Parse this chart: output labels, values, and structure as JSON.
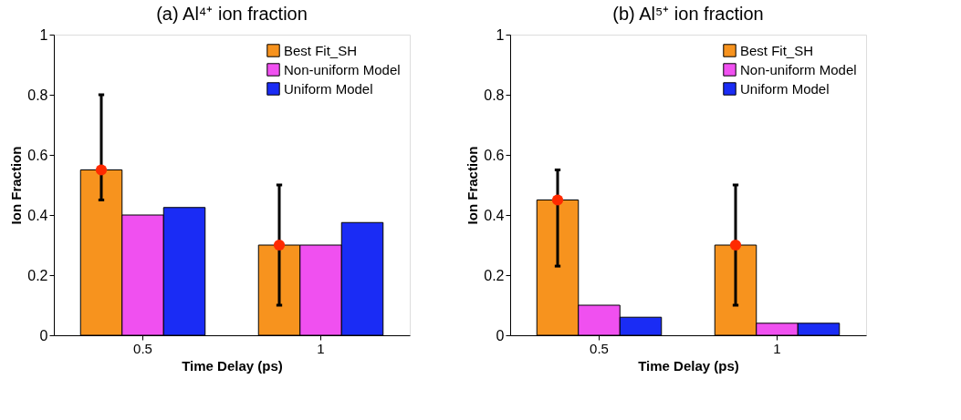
{
  "chart_data": [
    {
      "type": "bar",
      "title": "(a)  Al⁴⁺ ion fraction",
      "xlabel": "Time Delay (ps)",
      "ylabel": "Ion Fraction",
      "categories": [
        "0.5",
        "1"
      ],
      "ylim": [
        0,
        1
      ],
      "yticks": [
        0,
        0.2,
        0.4,
        0.6,
        0.8,
        1
      ],
      "legend": "top right",
      "grid": false,
      "series": [
        {
          "name": "Best Fit_SH",
          "color": "#f7931e",
          "values": [
            0.55,
            0.3
          ],
          "errors": [
            [
              0.45,
              0.8
            ],
            [
              0.1,
              0.5
            ]
          ]
        },
        {
          "name": "Non-uniform Model",
          "color": "#f050f0",
          "values": [
            0.4,
            0.3
          ]
        },
        {
          "name": "Uniform Model",
          "color": "#1a2cf5",
          "values": [
            0.425,
            0.375
          ]
        },
        {
          "type": "scatter",
          "color": "#ff2a00",
          "x": [
            "0.5",
            "1"
          ],
          "values": [
            0.55,
            0.3
          ]
        }
      ]
    },
    {
      "type": "bar",
      "title": "(b)  Al⁵⁺ ion fraction",
      "xlabel": "Time Delay (ps)",
      "ylabel": "Ion Fraction",
      "categories": [
        "0.5",
        "1"
      ],
      "ylim": [
        0,
        1
      ],
      "yticks": [
        0,
        0.2,
        0.4,
        0.6,
        0.8,
        1
      ],
      "legend": "top right",
      "grid": false,
      "series": [
        {
          "name": "Best Fit_SH",
          "color": "#f7931e",
          "values": [
            0.45,
            0.3
          ],
          "errors": [
            [
              0.23,
              0.55
            ],
            [
              0.1,
              0.5
            ]
          ]
        },
        {
          "name": "Non-uniform Model",
          "color": "#f050f0",
          "values": [
            0.1,
            0.04
          ]
        },
        {
          "name": "Uniform Model",
          "color": "#1a2cf5",
          "values": [
            0.06,
            0.04
          ]
        },
        {
          "type": "scatter",
          "color": "#ff2a00",
          "x": [
            "0.5",
            "1"
          ],
          "values": [
            0.45,
            0.3
          ]
        }
      ]
    }
  ]
}
